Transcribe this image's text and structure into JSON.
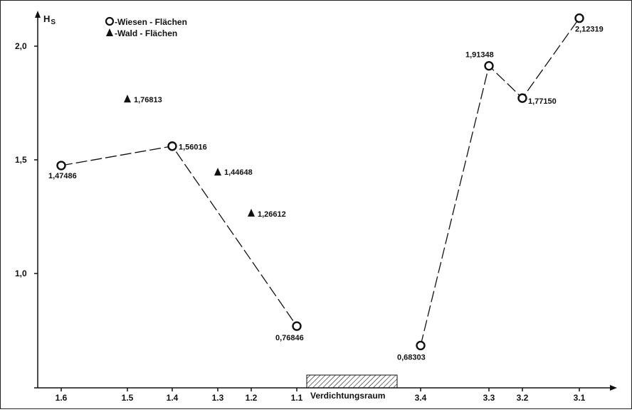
{
  "chart_data": {
    "type": "scatter",
    "ylabel": "H",
    "ylabel_sub": "S",
    "yticks": [
      {
        "value": 1.0,
        "label": "1,0"
      },
      {
        "value": 1.5,
        "label": "1,5"
      },
      {
        "value": 2.0,
        "label": "2,0"
      }
    ],
    "ylim": [
      0.45,
      2.2
    ],
    "x_categories": [
      "1.6",
      "1.5",
      "1.4",
      "1.3",
      "1.2",
      "1.1",
      "3.4",
      "3.3",
      "3.2",
      "3.1"
    ],
    "band": {
      "label": "Verdichtungsraum",
      "after_category": "1.1"
    },
    "legend": {
      "placement": "top-left",
      "items": [
        {
          "marker": "circle",
          "label": "Wiesen - Flächen"
        },
        {
          "marker": "triangle",
          "label": "Wald - Flächen"
        }
      ]
    },
    "series": [
      {
        "name": "Wiesen - Flächen",
        "marker": "circle",
        "style": "dashed",
        "segments": [
          [
            {
              "x": "1.6",
              "y": 1.47486,
              "label": "1,47486"
            },
            {
              "x": "1.4",
              "y": 1.56016,
              "label": "1,56016"
            },
            {
              "x": "1.1",
              "y": 0.76846,
              "label": "0,76846"
            }
          ],
          [
            {
              "x": "3.4",
              "y": 0.68303,
              "label": "0,68303"
            },
            {
              "x": "3.3",
              "y": 1.91348,
              "label": "1,91348"
            },
            {
              "x": "3.2",
              "y": 1.7715,
              "label": "1,77150"
            },
            {
              "x": "3.1",
              "y": 2.12319,
              "label": "2,12319"
            }
          ]
        ]
      },
      {
        "name": "Wald - Flächen",
        "marker": "triangle",
        "style": "none",
        "segments": [
          [
            {
              "x": "1.5",
              "y": 1.76813,
              "label": "1,76813"
            },
            {
              "x": "1.3",
              "y": 1.44648,
              "label": "1,44648"
            },
            {
              "x": "1.2",
              "y": 1.26612,
              "label": "1,26612"
            }
          ]
        ]
      }
    ]
  }
}
